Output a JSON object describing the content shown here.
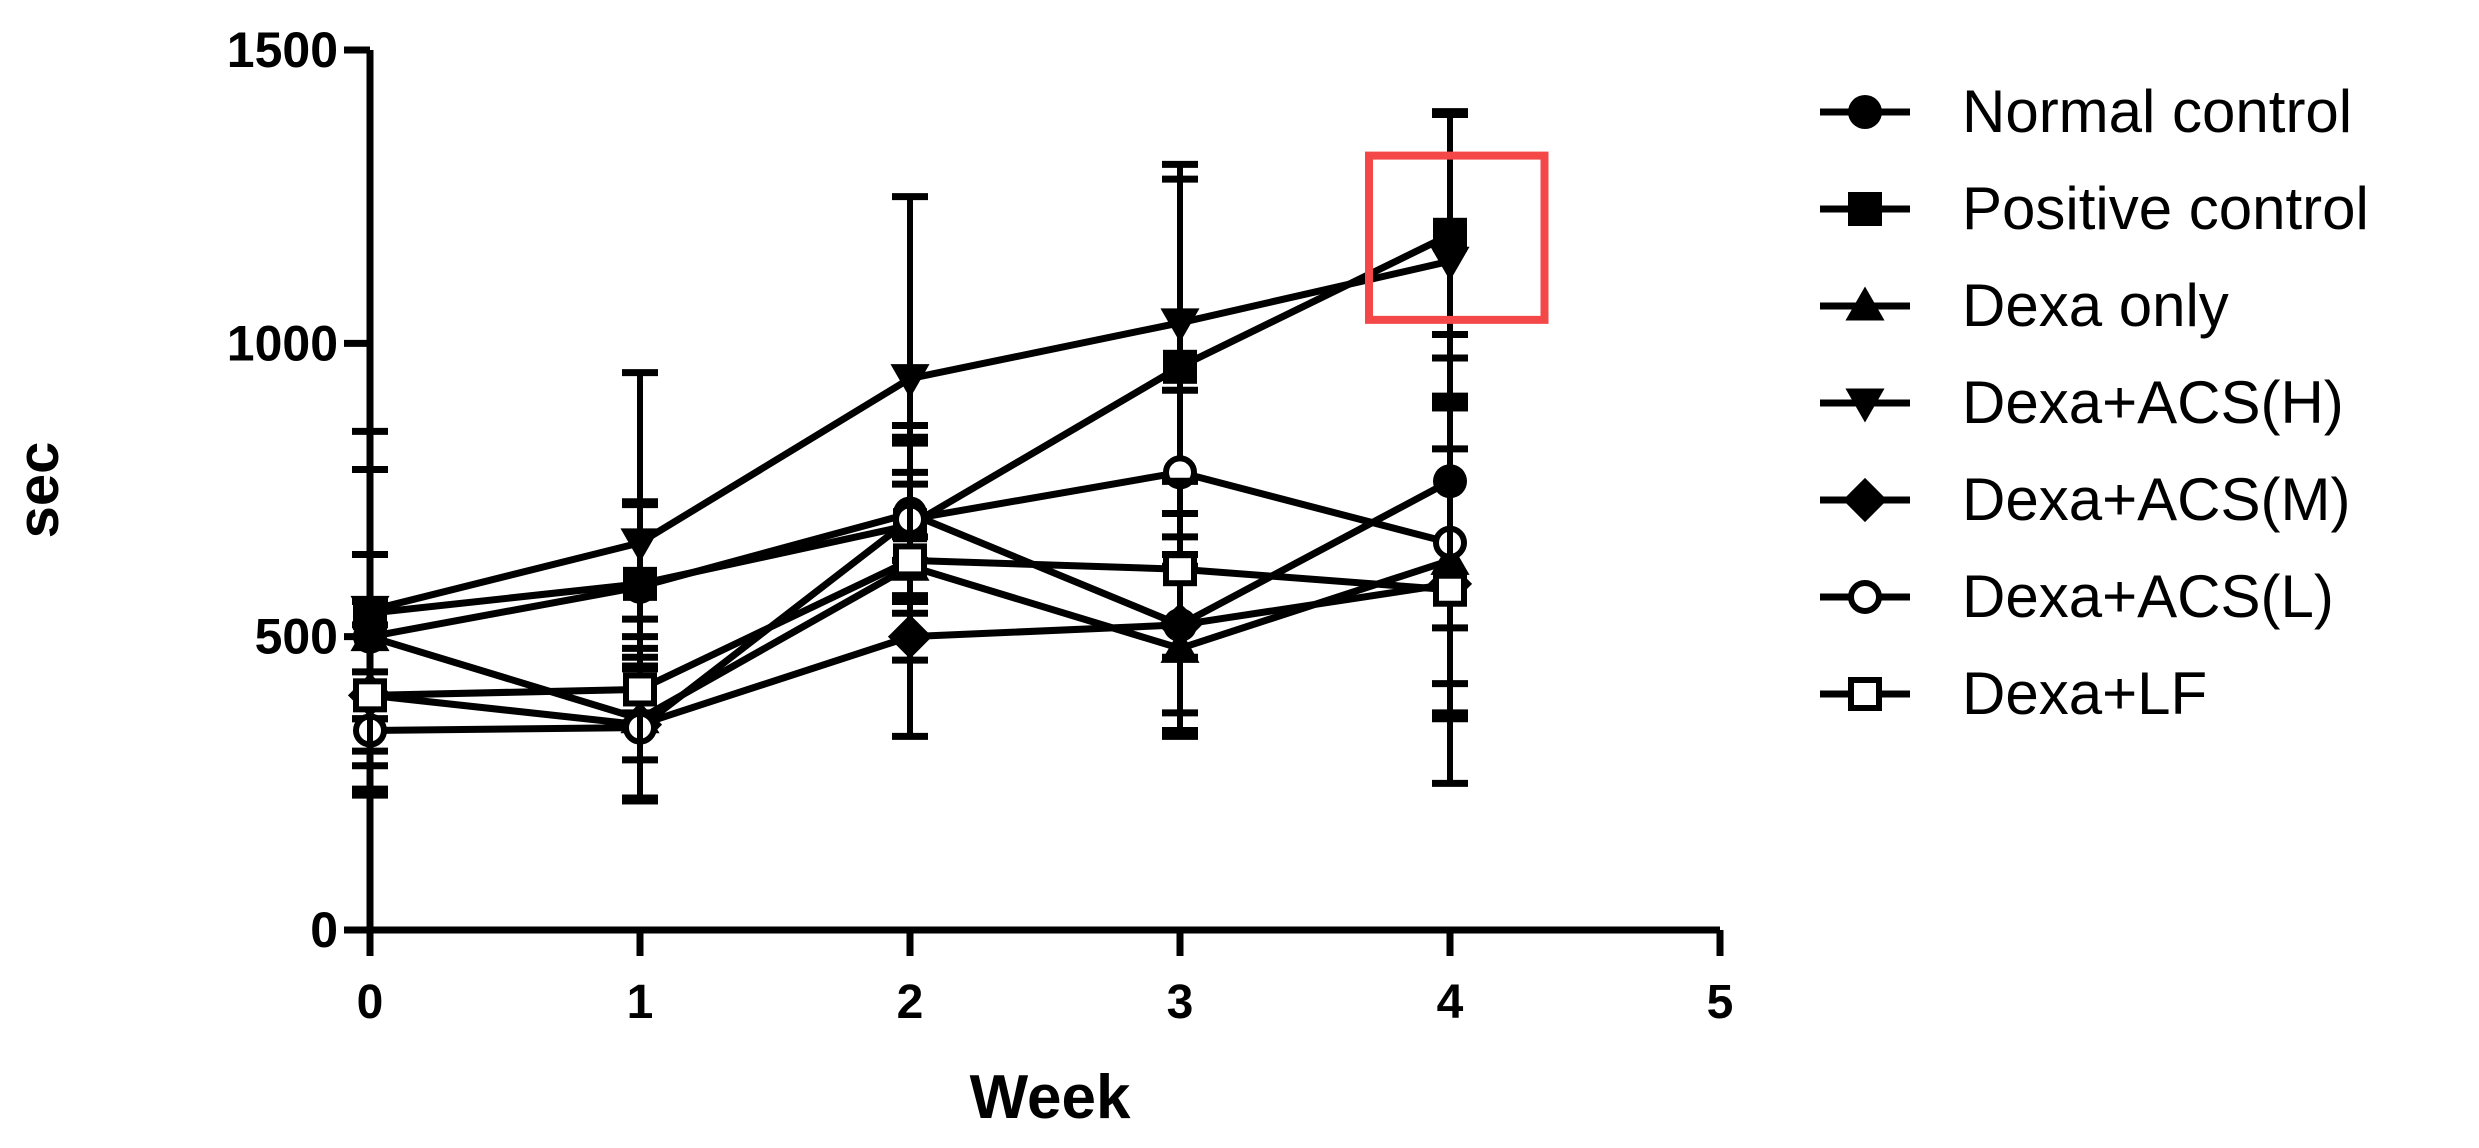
{
  "chart_data": {
    "type": "line",
    "xlabel": "Week",
    "ylabel": "sec",
    "xlim": [
      0,
      5
    ],
    "ylim": [
      0,
      1500
    ],
    "x_ticks": [
      "0",
      "1",
      "2",
      "3",
      "4",
      "5"
    ],
    "y_ticks": [
      "0",
      "500",
      "1000",
      "1500"
    ],
    "grid": false,
    "legend_position": "right",
    "x": [
      0,
      1,
      2,
      3,
      4
    ],
    "series": [
      {
        "name": "Normal control",
        "marker": "circle",
        "values": [
          500,
          585,
          710,
          520,
          765
        ],
        "errors": [
          140,
          140,
          150,
          150,
          250
        ]
      },
      {
        "name": "Positive control",
        "marker": "square",
        "values": [
          540,
          590,
          690,
          960,
          1185
        ],
        "errors": [
          310,
          140,
          150,
          320,
          210
        ]
      },
      {
        "name": "Dexa only",
        "marker": "triangle-up",
        "values": [
          500,
          360,
          620,
          480,
          630
        ],
        "errors": [
          140,
          140,
          160,
          140,
          260
        ]
      },
      {
        "name": "Dexa+ACS(H)",
        "marker": "triangle-down",
        "values": [
          545,
          660,
          940,
          1035,
          1140
        ],
        "errors": [
          240,
          290,
          310,
          270,
          250
        ]
      },
      {
        "name": "Dexa+ACS(M)",
        "marker": "diamond",
        "values": [
          400,
          350,
          500,
          520,
          590
        ],
        "errors": [
          160,
          130,
          170,
          190,
          230
        ]
      },
      {
        "name": "Dexa+ACS(L)",
        "marker": "open-circle",
        "values": [
          340,
          345,
          700,
          780,
          660
        ],
        "errors": [
          100,
          120,
          130,
          140,
          240
        ]
      },
      {
        "name": "Dexa+LF",
        "marker": "open-square",
        "values": [
          400,
          410,
          630,
          615,
          580
        ],
        "errors": [
          120,
          120,
          130,
          150,
          330
        ]
      }
    ],
    "annotation": {
      "type": "highlight-box",
      "color": "#f44848",
      "x_range": [
        3.7,
        4.35
      ],
      "y_range": [
        1040,
        1320
      ]
    }
  }
}
